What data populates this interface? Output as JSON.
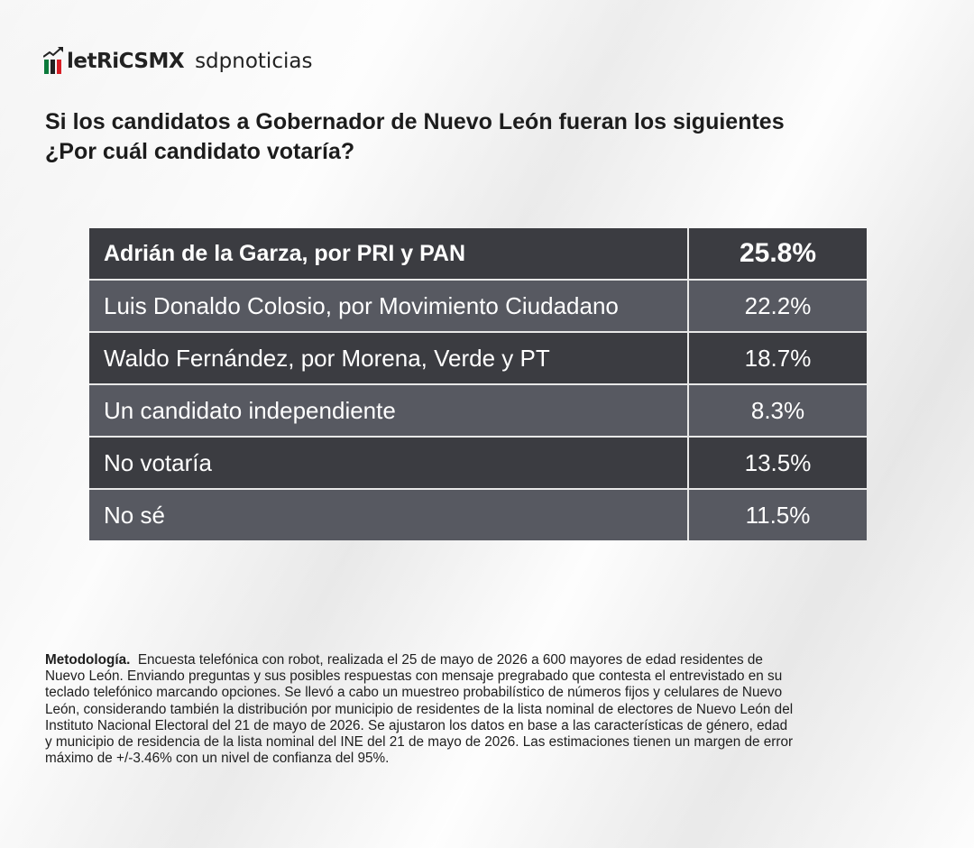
{
  "header": {
    "logo_text": "letRiCSMX",
    "partner_text": "sdpnoticias",
    "logo_icon": "chart-arrow-flag-icon",
    "flag_colors": [
      "#0b7a3b",
      "#d81f26"
    ]
  },
  "question": {
    "line1": "Si los candidatos a Gobernador de Nuevo León fueran los siguientes",
    "line2": "¿Por cuál candidato votaría?"
  },
  "chart_data": {
    "type": "table",
    "columns": [
      "candidate",
      "percent"
    ],
    "rows": [
      {
        "label": "Adrián de la Garza, por PRI y PAN",
        "value": 25.8,
        "display": "25.8%"
      },
      {
        "label": "Luis Donaldo Colosio, por Movimiento Ciudadano",
        "value": 22.2,
        "display": "22.2%"
      },
      {
        "label": "Waldo Fernández, por Morena, Verde y PT",
        "value": 18.7,
        "display": "18.7%"
      },
      {
        "label": "Un candidato independiente",
        "value": 8.3,
        "display": "8.3%"
      },
      {
        "label": "No votaría",
        "value": 13.5,
        "display": "13.5%"
      },
      {
        "label": "No sé",
        "value": 11.5,
        "display": "11.5%"
      }
    ],
    "row_colors": [
      "#3b3c41",
      "#575961"
    ],
    "highlight_row": 0
  },
  "methodology": {
    "label": "Metodología.",
    "lines": [
      "Encuesta telefónica con robot, realizada el 25 de mayo de 2026 a 600 mayores de edad residentes de",
      "Nuevo León. Enviando preguntas y sus posibles respuestas con mensaje pregrabado que contesta el entrevistado en su",
      "teclado telefónico marcando opciones. Se llevó a cabo un muestreo probabilístico de números fijos y celulares de Nuevo",
      "León, considerando también la distribución por municipio de residentes de la lista nominal de electores de Nuevo León del",
      "Instituto Nacional Electoral del 21 de mayo de 2026. Se ajustaron los datos en base a las características de género, edad",
      "y municipio de residencia de la lista nominal del INE del 21 de mayo de 2026. Las estimaciones tienen un margen de error",
      "máximo de +/-3.46% con un nivel de confianza del 95%."
    ]
  }
}
